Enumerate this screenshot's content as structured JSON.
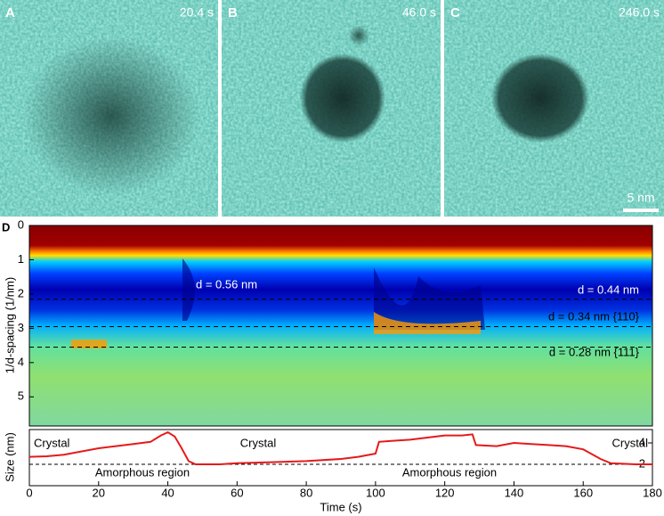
{
  "panels": [
    {
      "label": "A",
      "time": "20.4 s"
    },
    {
      "label": "B",
      "time": "46.0 s"
    },
    {
      "label": "C",
      "time": "246.0 s"
    }
  ],
  "scale_bar": "5 nm",
  "chart_data": [
    {
      "type": "heatmap",
      "label": "D",
      "y_label": "1/d-spacing (1/nm)",
      "ylim": [
        0,
        5.85
      ],
      "yticks": [
        0,
        1,
        2,
        3,
        4,
        5
      ],
      "xlim": [
        0,
        180
      ],
      "hlines": [
        2.15,
        2.95,
        3.55
      ],
      "annotations": [
        "d = 0.56 nm",
        "d = 0.44 nm",
        "d = 0.34 nm {110}",
        "d = 0.28 nm {111}"
      ]
    },
    {
      "type": "line",
      "y_label": "Size (nm)",
      "x_label": "Time (s)",
      "color": "#e41a1c",
      "x": [
        0,
        5,
        10,
        15,
        20,
        25,
        30,
        35,
        38,
        40,
        42,
        44,
        46,
        48,
        55,
        60,
        70,
        80,
        90,
        95,
        100,
        101,
        105,
        110,
        115,
        120,
        125,
        128,
        129,
        135,
        140,
        145,
        150,
        155,
        160,
        165,
        168,
        175,
        180
      ],
      "values": [
        2.7,
        2.75,
        2.9,
        3.2,
        3.5,
        3.7,
        3.9,
        4.1,
        4.7,
        5.0,
        4.6,
        3.5,
        2.3,
        2.0,
        2.0,
        2.1,
        2.2,
        2.3,
        2.5,
        2.7,
        3.0,
        4.1,
        4.2,
        4.3,
        4.5,
        4.7,
        4.7,
        4.8,
        3.8,
        3.7,
        4.0,
        3.9,
        3.8,
        3.7,
        3.4,
        2.5,
        2.1,
        2.0,
        2.0
      ],
      "threshold": 2.0,
      "ylim": [
        0,
        5.25
      ],
      "yticks": [
        2,
        4
      ],
      "xlim": [
        0,
        180
      ],
      "xticks": [
        0,
        20,
        40,
        60,
        80,
        100,
        120,
        140,
        160,
        180
      ],
      "annotations": [
        "Crystal",
        "Amorphous region",
        "Crystal",
        "Amorphous region",
        "Crystal"
      ]
    }
  ]
}
